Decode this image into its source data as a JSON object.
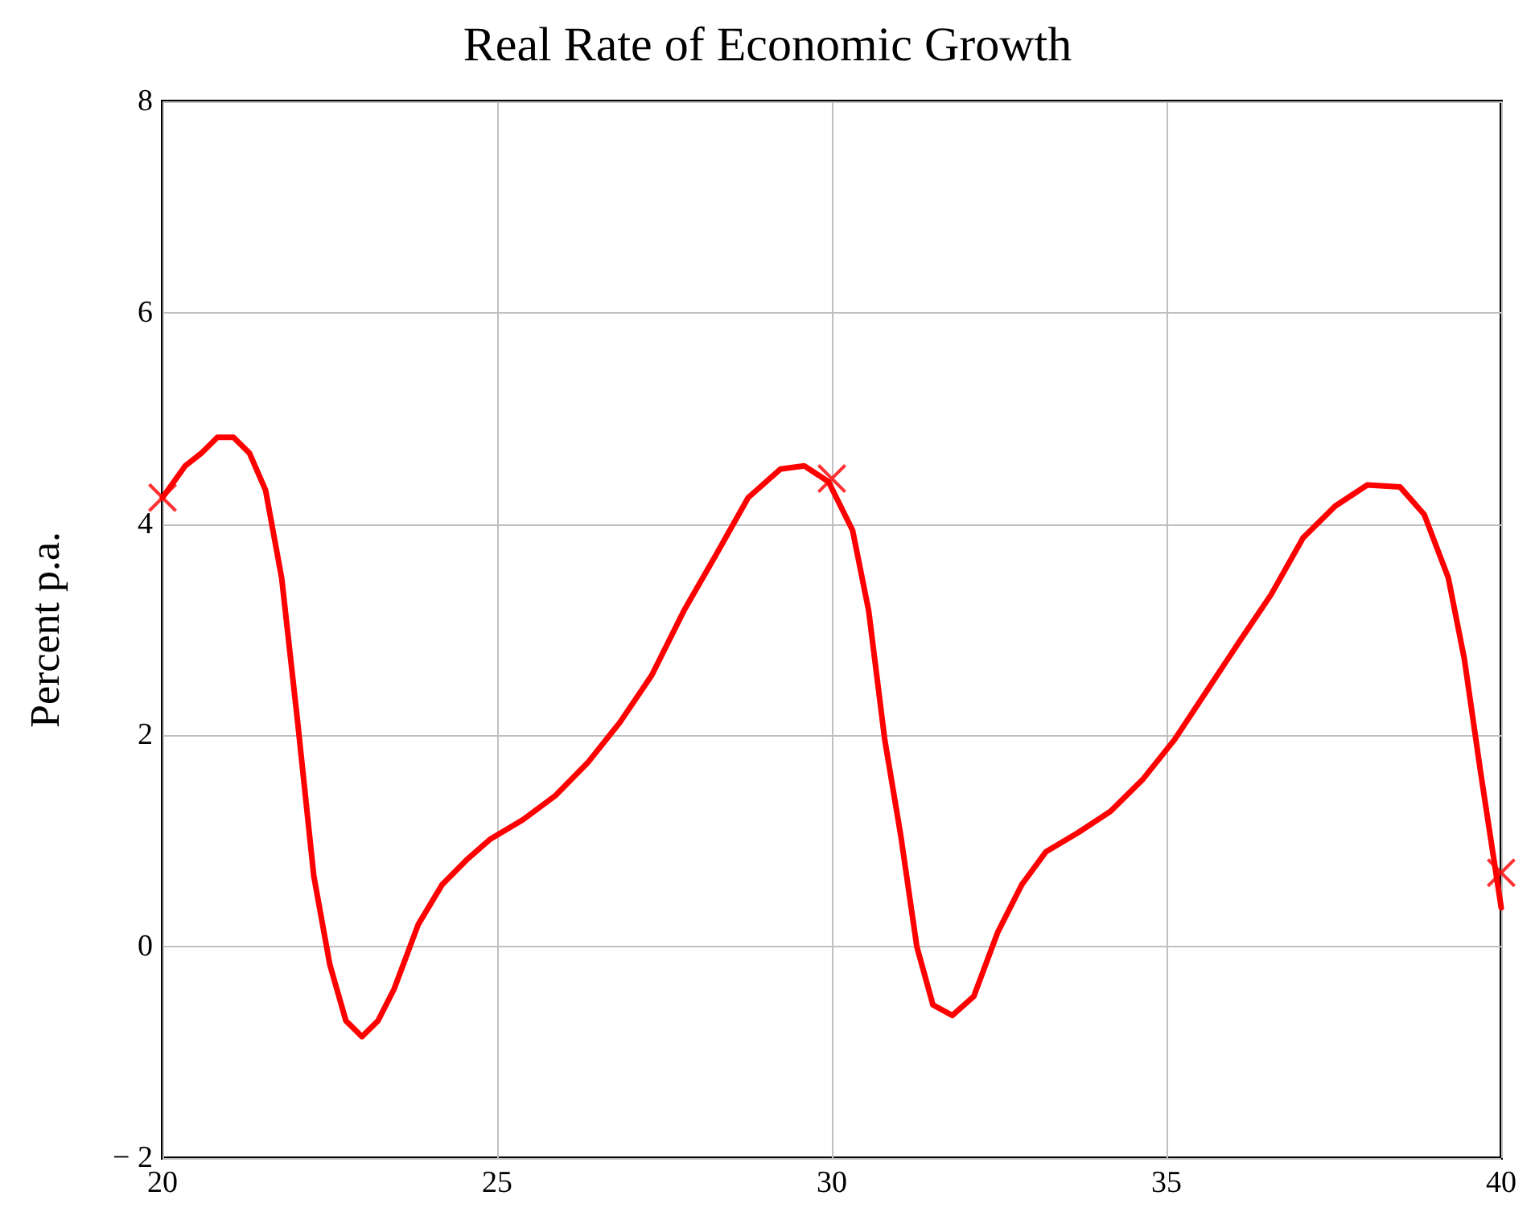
{
  "chart_data": {
    "type": "line",
    "title": "Real Rate of Economic Growth",
    "ylabel": "Percent p.a.",
    "xlim": [
      20,
      40
    ],
    "xticks": [
      20,
      25,
      30,
      35,
      40
    ],
    "ylim": [
      -2,
      8
    ],
    "yticks": [
      {
        "value": -2,
        "label": "− 2"
      },
      0,
      2,
      4,
      6,
      8
    ],
    "grid": true,
    "series": [
      {
        "color": "#ff0000",
        "marker": "none",
        "line_style": "solid",
        "x": [
          20,
          20.34,
          20.58,
          20.82,
          21.06,
          21.3,
          21.54,
          21.78,
          22.02,
          22.26,
          22.5,
          22.74,
          22.98,
          23.22,
          23.46,
          23.82,
          24.18,
          24.54,
          24.9,
          25.38,
          25.87,
          26.35,
          26.83,
          27.31,
          27.79,
          28.27,
          28.75,
          29.23,
          29.59,
          29.95,
          30.31,
          30.55,
          30.79,
          31.03,
          31.27,
          31.51,
          31.8,
          32.12,
          32.48,
          32.84,
          33.2,
          33.68,
          34.16,
          34.64,
          35.12,
          35.6,
          36.08,
          36.56,
          37.04,
          37.52,
          38,
          38.49,
          38.85,
          39.21,
          39.45,
          39.69,
          40
        ],
        "values": [
          4.25,
          4.55,
          4.67,
          4.82,
          4.82,
          4.67,
          4.32,
          3.49,
          2.12,
          0.67,
          -0.17,
          -0.7,
          -0.85,
          -0.7,
          -0.4,
          0.21,
          0.59,
          0.82,
          1.02,
          1.2,
          1.43,
          1.74,
          2.12,
          2.57,
          3.18,
          3.71,
          4.25,
          4.52,
          4.55,
          4.4,
          3.94,
          3.18,
          1.96,
          1.05,
          0,
          -0.55,
          -0.65,
          -0.47,
          0.14,
          0.59,
          0.9,
          1.08,
          1.28,
          1.58,
          1.96,
          2.42,
          2.88,
          3.33,
          3.87,
          4.17,
          4.37,
          4.35,
          4.09,
          3.49,
          2.72,
          1.66,
          0.37
        ]
      },
      {
        "type": "scatter",
        "color": "#ff0000",
        "marker": "cross",
        "x": [
          20,
          30,
          40
        ],
        "values": [
          4.25,
          4.43,
          0.7
        ]
      }
    ]
  }
}
